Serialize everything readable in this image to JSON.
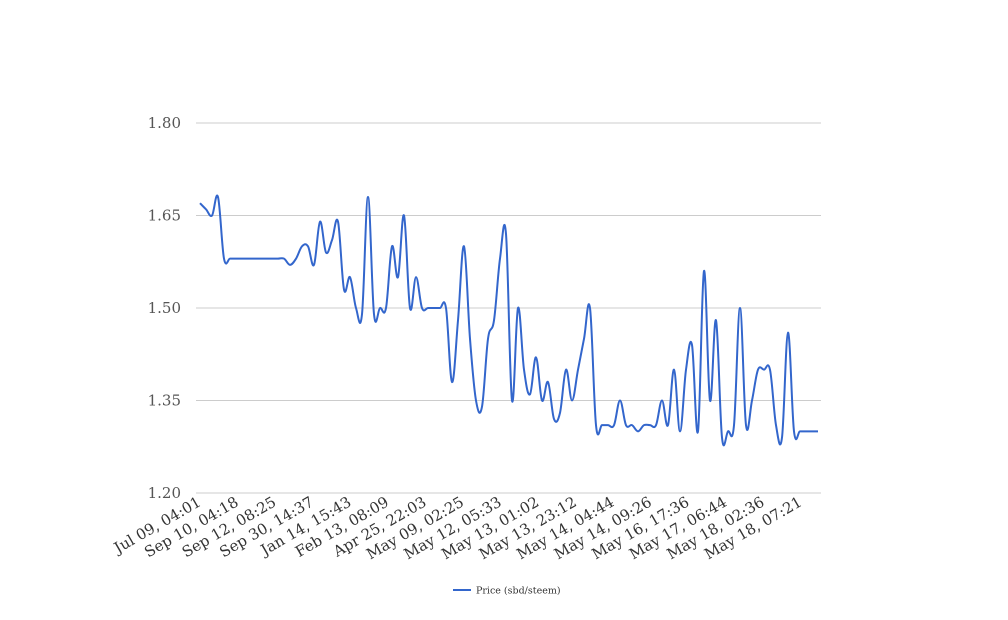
{
  "chart_data": {
    "type": "line",
    "title": "",
    "xlabel": "",
    "ylabel": "",
    "ylim": [
      1.2,
      1.8
    ],
    "yticks": [
      "1.80",
      "1.65",
      "1.50",
      "1.35",
      "1.20"
    ],
    "ytick_values": [
      1.8,
      1.65,
      1.5,
      1.35,
      1.2
    ],
    "xtick_labels": [
      "Jul 09, 04:01",
      "Sep 10, 04:18",
      "Sep 12, 08:25",
      "Sep 30, 14:37",
      "Jan 14, 15:43",
      "Feb 13, 08:09",
      "Apr 25, 22:03",
      "May 09, 02:25",
      "May 12, 05:33",
      "May 13, 01:02",
      "May 13, 23:12",
      "May 14, 04:44",
      "May 14, 09:26",
      "May 16, 17:36",
      "May 17, 06:44",
      "May 18, 02:36",
      "May 18, 07:21"
    ],
    "grid": true,
    "legend_position": "bottom",
    "line_color": "#3366cc",
    "series": [
      {
        "name": "Price (sbd/steem)",
        "values": [
          1.67,
          1.66,
          1.65,
          1.68,
          1.58,
          1.58,
          1.58,
          1.58,
          1.58,
          1.58,
          1.58,
          1.58,
          1.58,
          1.58,
          1.58,
          1.57,
          1.58,
          1.6,
          1.6,
          1.57,
          1.64,
          1.59,
          1.61,
          1.64,
          1.53,
          1.55,
          1.5,
          1.49,
          1.68,
          1.49,
          1.5,
          1.5,
          1.6,
          1.55,
          1.65,
          1.5,
          1.55,
          1.5,
          1.5,
          1.5,
          1.5,
          1.5,
          1.38,
          1.48,
          1.6,
          1.45,
          1.35,
          1.34,
          1.45,
          1.48,
          1.58,
          1.62,
          1.35,
          1.5,
          1.4,
          1.36,
          1.42,
          1.35,
          1.38,
          1.32,
          1.33,
          1.4,
          1.35,
          1.4,
          1.45,
          1.5,
          1.31,
          1.31,
          1.31,
          1.31,
          1.35,
          1.31,
          1.31,
          1.3,
          1.31,
          1.31,
          1.31,
          1.35,
          1.31,
          1.4,
          1.3,
          1.4,
          1.44,
          1.3,
          1.56,
          1.35,
          1.48,
          1.29,
          1.3,
          1.31,
          1.5,
          1.31,
          1.35,
          1.4,
          1.4,
          1.4,
          1.31,
          1.29,
          1.46,
          1.3,
          1.3,
          1.3,
          1.3,
          1.3
        ]
      }
    ]
  }
}
